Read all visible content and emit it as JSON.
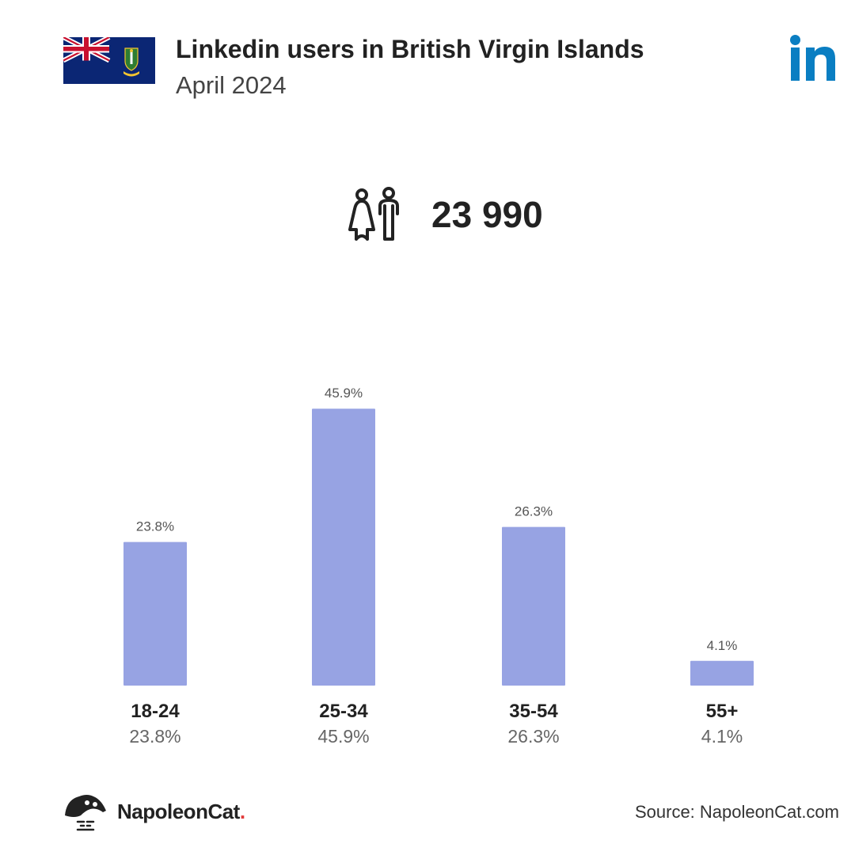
{
  "header": {
    "title": "Linkedin users in British Virgin Islands",
    "subtitle": "April 2024"
  },
  "total": {
    "value": "23 990"
  },
  "chart_data": {
    "type": "bar",
    "categories": [
      "18-24",
      "25-34",
      "35-54",
      "55+"
    ],
    "values": [
      23.8,
      45.9,
      26.3,
      4.1
    ],
    "value_labels": [
      "23.8%",
      "45.9%",
      "26.3%",
      "4.1%"
    ],
    "bar_color": "#97a3e3",
    "grid": false,
    "legend": "none"
  },
  "footer": {
    "brand": "NapoleonCat",
    "brand_dot": ".",
    "source": "Source: NapoleonCat.com"
  },
  "colors": {
    "linkedin_blue": "#0a7ec2",
    "text_dark": "#222222",
    "text_muted": "#666666",
    "brand_dot": "#e23a3a"
  },
  "icons": [
    "bvi-flag-icon",
    "linkedin-logo-icon",
    "people-icon",
    "napoleoncat-logo-icon"
  ]
}
